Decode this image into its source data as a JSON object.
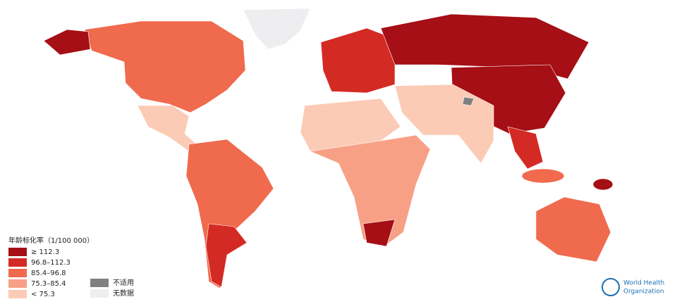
{
  "legend": {
    "title": "年龄标化率（1/100 000）",
    "items": [
      {
        "label": "≥ 112.3",
        "color": "#a50f15"
      },
      {
        "label": "96.8–112.3",
        "color": "#d42a24"
      },
      {
        "label": "85.4–96.8",
        "color": "#f06a4d"
      },
      {
        "label": "75.3–85.4",
        "color": "#f7a086"
      },
      {
        "label": "< 75.3",
        "color": "#fbcbb5"
      }
    ],
    "other": [
      {
        "label": "不适用",
        "color": "#808080"
      },
      {
        "label": "无数据",
        "color": "#eeeef0"
      }
    ]
  },
  "logo": {
    "lines": [
      "World Health",
      "Organization"
    ]
  }
}
